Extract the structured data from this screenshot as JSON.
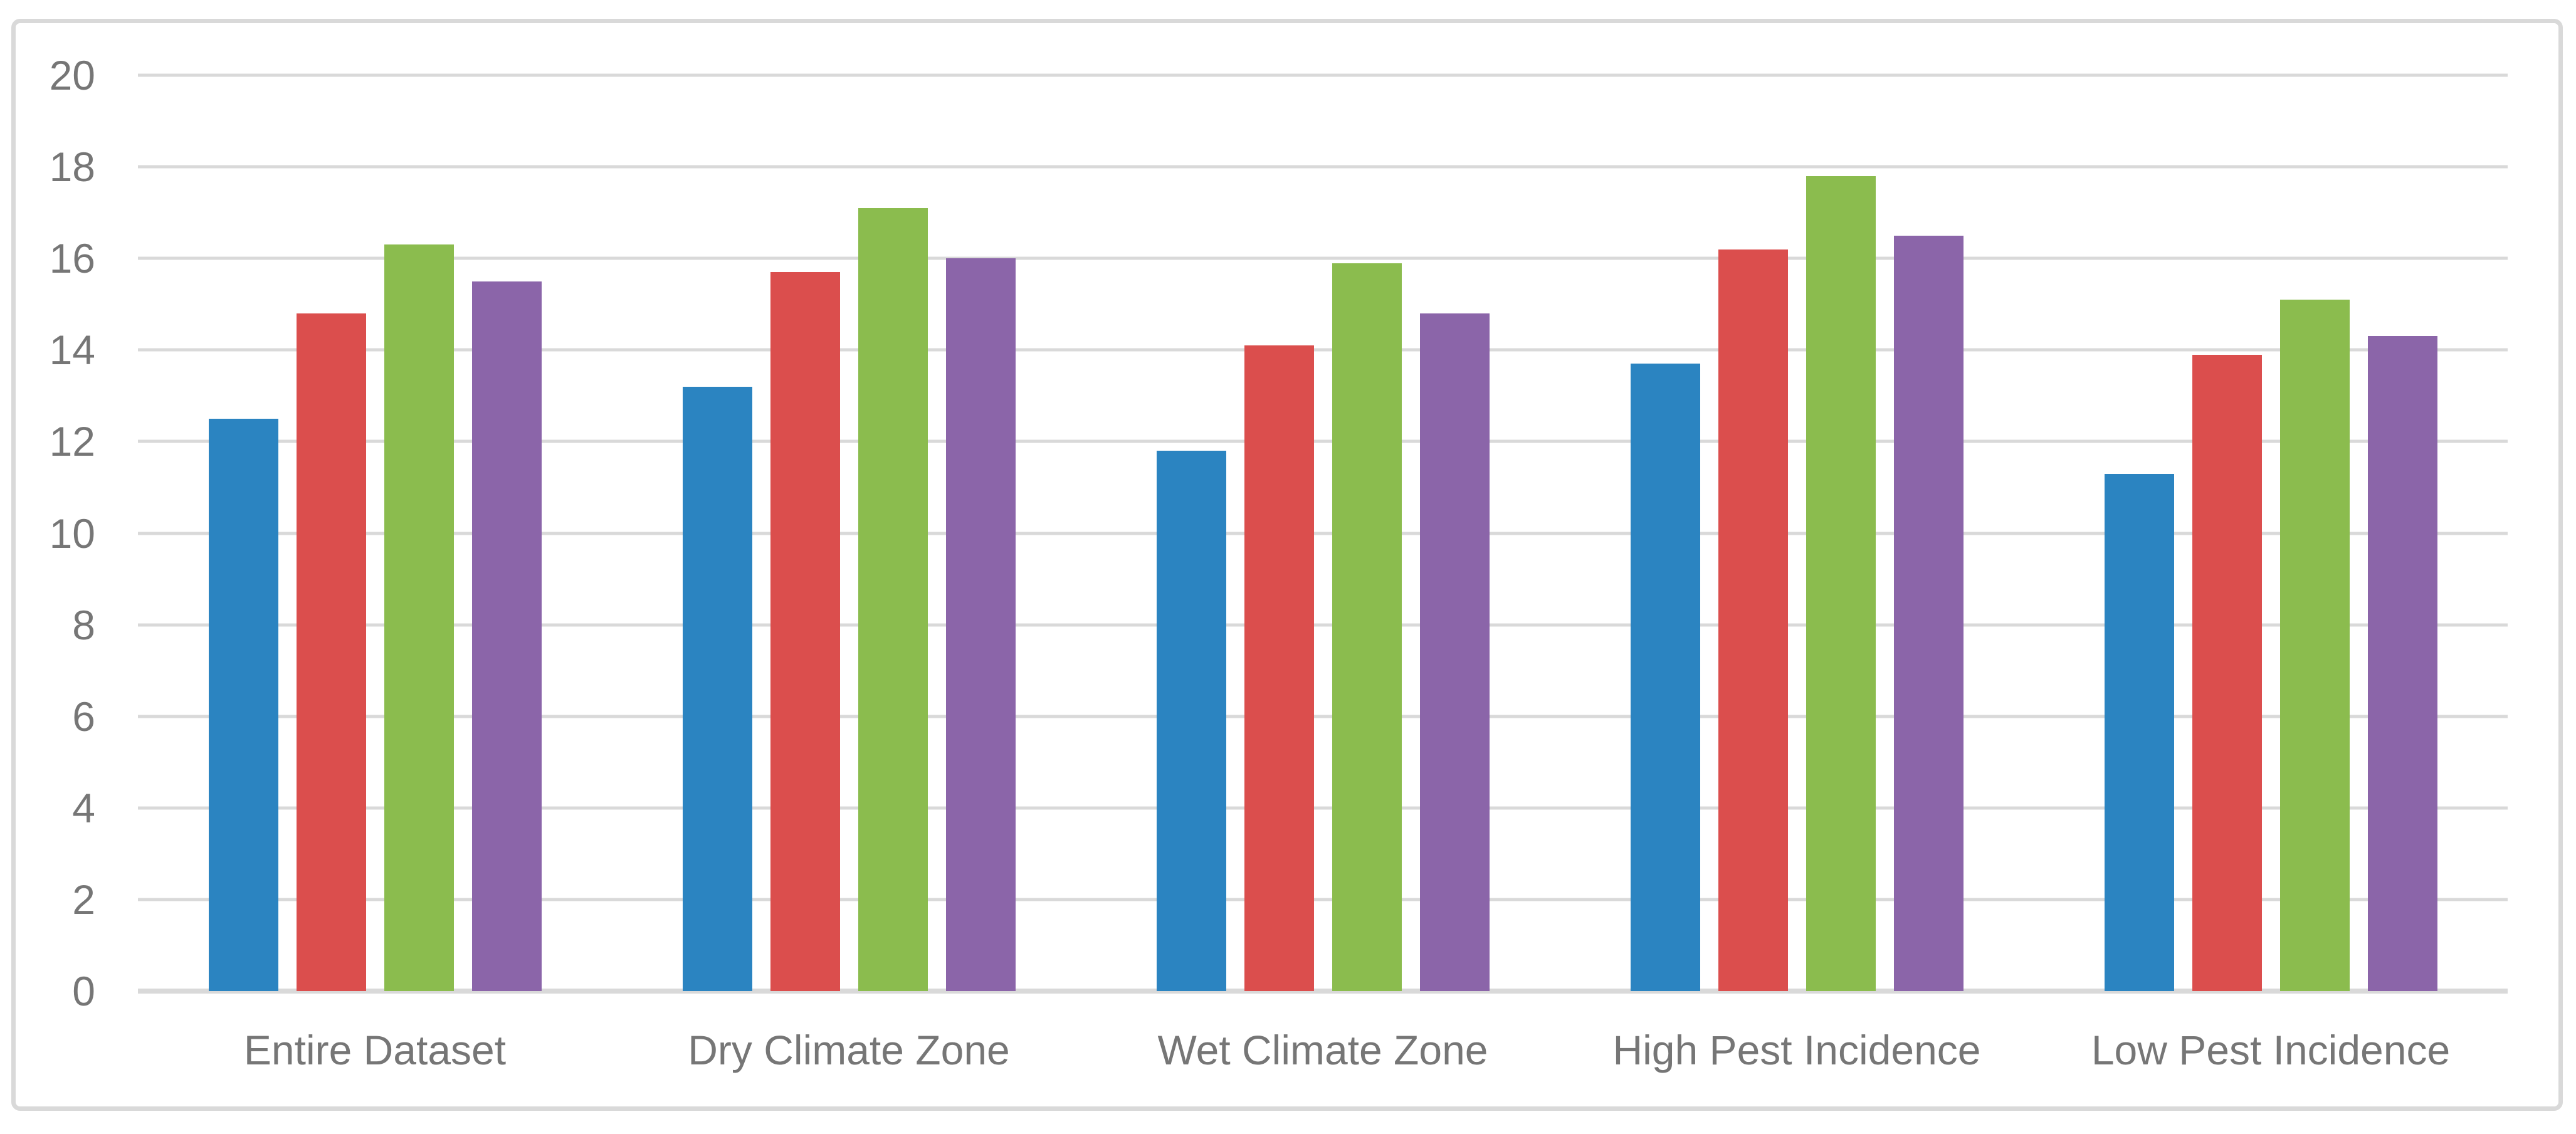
{
  "chart_data": {
    "type": "bar",
    "title": "",
    "xlabel": "",
    "ylabel": "",
    "categories": [
      "Entire Dataset",
      "Dry Climate Zone",
      "Wet Climate Zone",
      "High Pest Incidence",
      "Low Pest Incidence"
    ],
    "series": [
      {
        "color": "#2B84C1",
        "values": [
          12.5,
          13.2,
          11.8,
          13.7,
          11.3
        ]
      },
      {
        "color": "#DB4E4D",
        "values": [
          14.8,
          15.7,
          14.1,
          16.2,
          13.9
        ]
      },
      {
        "color": "#8BBC4E",
        "values": [
          16.3,
          17.1,
          15.9,
          17.8,
          15.1
        ]
      },
      {
        "color": "#8B65A9",
        "values": [
          15.5,
          16.0,
          14.8,
          16.5,
          14.3
        ]
      }
    ],
    "ylim": [
      0,
      20
    ],
    "yticks": [
      0,
      2,
      4,
      6,
      8,
      10,
      12,
      14,
      16,
      18,
      20
    ],
    "grid": true,
    "legend": "none"
  },
  "style": {
    "frame_border_color": "#D9D9D9",
    "gridline_color": "#D9D9D9",
    "tick_label_color": "#767676",
    "background": "#FFFFFF"
  }
}
